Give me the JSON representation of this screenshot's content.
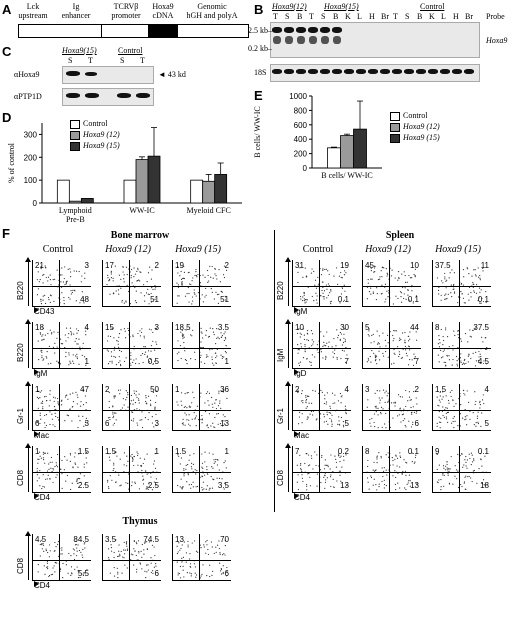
{
  "panel_labels": {
    "a": "A",
    "b": "B",
    "c": "C",
    "d": "D",
    "e": "E",
    "f": "F"
  },
  "panelA": {
    "segments": [
      "Lck upstream",
      "Ig enhancer",
      "TCRVβ promoter",
      "Hoxa9 cDNA",
      "Genomic hGH and polyA"
    ],
    "seg_lines": [
      [
        "Lck",
        "upstream"
      ],
      [
        "Ig",
        "enhancer"
      ],
      [
        "TCRVβ",
        "promoter"
      ],
      [
        "Hoxa9",
        "cDNA"
      ],
      [
        "Genomic",
        "hGH and polyA"
      ]
    ]
  },
  "panelB": {
    "groups": [
      "Hoxa9(12)",
      "Hoxa9(15)",
      "Control"
    ],
    "probe_label": "Probe",
    "lanes": [
      "T",
      "S",
      "B",
      "T",
      "S",
      "B",
      "K",
      "L",
      "H",
      "Br",
      "T",
      "S",
      "B",
      "K",
      "L",
      "H",
      "Br"
    ],
    "markers": [
      "2.5 kb–",
      "0.2 kb–"
    ],
    "gene_label": "Hoxa9",
    "ribosomal_label": "18S"
  },
  "panelC": {
    "groups": [
      "Hoxa9(15)",
      "Control"
    ],
    "lanes": [
      "S",
      "T",
      "S",
      "T"
    ],
    "rows": [
      "αHoxa9",
      "αPTP1D"
    ],
    "size_label": "43 kd"
  },
  "legend": [
    {
      "label": "Control",
      "color": "#ffffff",
      "italic": false
    },
    {
      "label": "Hoxa9 (12)",
      "color": "#9a9a9a",
      "italic": true
    },
    {
      "label": "Hoxa9 (15)",
      "color": "#333333",
      "italic": true
    }
  ],
  "chart_data": [
    {
      "type": "bar",
      "ylabel": "% of control",
      "ylim": [
        0,
        350
      ],
      "yticks": [
        0,
        100,
        200,
        300
      ],
      "categories": [
        "Lymphoid Pre-B",
        "WW-IC",
        "Myeloid CFC"
      ],
      "category_lines": [
        [
          "Lymphoid",
          "Pre-B"
        ],
        [
          "WW-IC"
        ],
        [
          "Myeloid CFC"
        ]
      ],
      "series": [
        {
          "name": "Control",
          "values": [
            100,
            100,
            100
          ],
          "errors": [
            0,
            0,
            0
          ]
        },
        {
          "name": "Hoxa9 (12)",
          "values": [
            8,
            190,
            95
          ],
          "errors": [
            0,
            12,
            30
          ]
        },
        {
          "name": "Hoxa9 (15)",
          "values": [
            20,
            205,
            125
          ],
          "errors": [
            0,
            125,
            50
          ]
        }
      ]
    },
    {
      "type": "bar",
      "ylabel": "B cells/ WW-IC",
      "ylim": [
        0,
        1000
      ],
      "yticks": [
        0,
        200,
        400,
        600,
        800,
        1000
      ],
      "categories": [
        "B cells/ WW-IC"
      ],
      "series": [
        {
          "name": "Control",
          "values": [
            280
          ],
          "errors": [
            10
          ]
        },
        {
          "name": "Hoxa9 (12)",
          "values": [
            450
          ],
          "errors": [
            20
          ]
        },
        {
          "name": "Hoxa9 (15)",
          "values": [
            540
          ],
          "errors": [
            390
          ]
        }
      ]
    }
  ],
  "panelF": {
    "bm_title": "Bone marrow",
    "spleen_title": "Spleen",
    "thymus_title": "Thymus",
    "columns": [
      "Control",
      "Hoxa9 (12)",
      "Hoxa9 (15)"
    ],
    "bm_rows": [
      {
        "y": "B220",
        "x": "CD43",
        "q": [
          [
            "21",
            "3",
            "",
            "48"
          ],
          [
            "17",
            "2",
            "",
            "51"
          ],
          [
            "19",
            "2",
            "",
            "51"
          ]
        ]
      },
      {
        "y": "B220",
        "x": "IgM",
        "q": [
          [
            "18",
            "4",
            "",
            "1"
          ],
          [
            "15",
            "3",
            "",
            "0.5"
          ],
          [
            "18.5",
            "3.5",
            "",
            "1"
          ]
        ]
      },
      {
        "y": "Gr-1",
        "x": "Mac",
        "q": [
          [
            "1",
            "47",
            "6",
            "3"
          ],
          [
            "2",
            "50",
            "6",
            "3"
          ],
          [
            "1",
            "36",
            "",
            "13"
          ]
        ]
      },
      {
        "y": "CD8",
        "x": "CD4",
        "q": [
          [
            "1",
            "1.5",
            "",
            "2.5"
          ],
          [
            "1.5",
            "1",
            "",
            "2.5"
          ],
          [
            "1.5",
            "1",
            "",
            "3.5"
          ]
        ]
      }
    ],
    "sp_rows": [
      {
        "y": "B220",
        "x": "IgM",
        "q": [
          [
            "31",
            "19",
            "",
            "0.1"
          ],
          [
            "45",
            "10",
            "",
            "0.1"
          ],
          [
            "37.5",
            "11",
            "",
            "0.1"
          ]
        ]
      },
      {
        "y": "IgM",
        "x": "IgD",
        "q": [
          [
            "10",
            "30",
            "",
            "7"
          ],
          [
            "5",
            "44",
            "",
            "7"
          ],
          [
            "8",
            "37.5",
            "",
            "4.5"
          ]
        ]
      },
      {
        "y": "Gr-1",
        "x": "Mac",
        "q": [
          [
            "2",
            "4",
            "",
            "5"
          ],
          [
            "3",
            "2",
            "",
            "6"
          ],
          [
            "1.5",
            "4",
            "",
            "5"
          ]
        ]
      },
      {
        "y": "CD8",
        "x": "CD4",
        "q": [
          [
            "7",
            "0.2",
            "",
            "13"
          ],
          [
            "8",
            "0.1",
            "",
            "13"
          ],
          [
            "9",
            "0.1",
            "",
            "18"
          ]
        ]
      }
    ],
    "thy_row": {
      "y": "CD8",
      "x": "CD4",
      "q": [
        [
          "4.5",
          "84.5",
          "",
          "5.5"
        ],
        [
          "3.5",
          "74.5",
          "",
          "6"
        ],
        [
          "13",
          "70",
          "",
          "6"
        ]
      ]
    }
  }
}
